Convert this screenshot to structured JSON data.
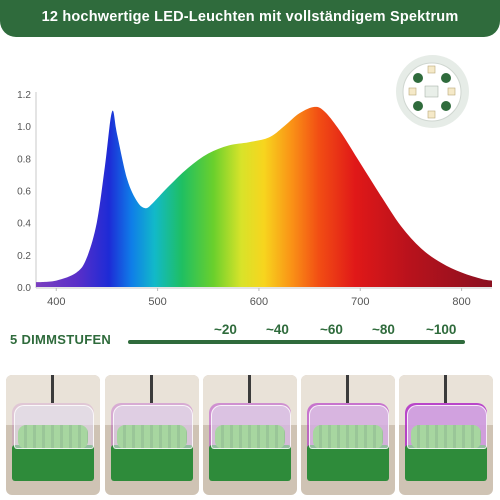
{
  "banner": {
    "title": "12 hochwertige LED-Leuchten mit vollständigem Spektrum"
  },
  "chart_data": {
    "type": "area",
    "title": "",
    "xlabel": "",
    "ylabel": "",
    "xlim": [
      380,
      830
    ],
    "ylim": [
      0,
      1.2
    ],
    "x_ticks": [
      "400",
      "500",
      "600",
      "700",
      "800"
    ],
    "y_ticks": [
      "0.0",
      "0.2",
      "0.4",
      "0.6",
      "0.8",
      "1.0",
      "1.2"
    ],
    "grid": false,
    "series": [
      {
        "fill": "visible-spectrum gradient",
        "points": [
          [
            380,
            0.03
          ],
          [
            400,
            0.04
          ],
          [
            420,
            0.09
          ],
          [
            430,
            0.18
          ],
          [
            440,
            0.4
          ],
          [
            448,
            0.75
          ],
          [
            455,
            1.09
          ],
          [
            460,
            0.95
          ],
          [
            470,
            0.67
          ],
          [
            480,
            0.53
          ],
          [
            488,
            0.49
          ],
          [
            495,
            0.52
          ],
          [
            510,
            0.62
          ],
          [
            530,
            0.74
          ],
          [
            550,
            0.83
          ],
          [
            570,
            0.88
          ],
          [
            590,
            0.9
          ],
          [
            610,
            0.93
          ],
          [
            625,
            1.0
          ],
          [
            640,
            1.08
          ],
          [
            655,
            1.12
          ],
          [
            665,
            1.09
          ],
          [
            680,
            0.97
          ],
          [
            700,
            0.77
          ],
          [
            720,
            0.57
          ],
          [
            740,
            0.38
          ],
          [
            760,
            0.24
          ],
          [
            780,
            0.15
          ],
          [
            800,
            0.09
          ],
          [
            820,
            0.05
          ],
          [
            830,
            0.04
          ]
        ]
      }
    ]
  },
  "dimming": {
    "label": "5 DIMMSTUFEN",
    "levels": [
      "~20",
      "~40",
      "~60",
      "~80",
      "~100"
    ]
  }
}
